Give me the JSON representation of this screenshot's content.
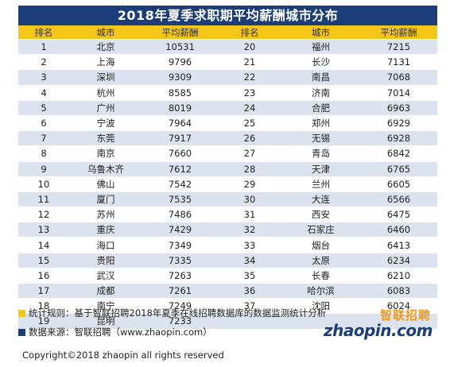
{
  "title": "2018年夏季求职期平均薪酬城市分布",
  "headers": [
    "排名",
    "城市",
    "平均薪酬",
    "排名",
    "城市",
    "平均薪酬"
  ],
  "left_rows": [
    [
      "1",
      "北京",
      "10531"
    ],
    [
      "2",
      "上海",
      "9796"
    ],
    [
      "3",
      "深圳",
      "9309"
    ],
    [
      "4",
      "杭州",
      "8585"
    ],
    [
      "5",
      "广州",
      "8019"
    ],
    [
      "6",
      "宁波",
      "7964"
    ],
    [
      "7",
      "东莞",
      "7917"
    ],
    [
      "8",
      "南京",
      "7660"
    ],
    [
      "9",
      "乌鲁木齐",
      "7612"
    ],
    [
      "10",
      "佛山",
      "7542"
    ],
    [
      "11",
      "厦门",
      "7535"
    ],
    [
      "12",
      "苏州",
      "7486"
    ],
    [
      "13",
      "重庆",
      "7429"
    ],
    [
      "14",
      "海口",
      "7349"
    ],
    [
      "15",
      "贵阳",
      "7335"
    ],
    [
      "16",
      "武汉",
      "7263"
    ],
    [
      "17",
      "成都",
      "7261"
    ],
    [
      "18",
      "南宁",
      "7249"
    ],
    [
      "19",
      "昆明",
      "7233"
    ]
  ],
  "right_rows": [
    [
      "20",
      "福州",
      "7215"
    ],
    [
      "21",
      "长沙",
      "7131"
    ],
    [
      "22",
      "南昌",
      "7068"
    ],
    [
      "23",
      "济南",
      "7014"
    ],
    [
      "24",
      "合肥",
      "6963"
    ],
    [
      "25",
      "郑州",
      "6929"
    ],
    [
      "26",
      "无锡",
      "6928"
    ],
    [
      "27",
      "青岛",
      "6842"
    ],
    [
      "28",
      "天津",
      "6765"
    ],
    [
      "29",
      "兰州",
      "6605"
    ],
    [
      "30",
      "大连",
      "6566"
    ],
    [
      "31",
      "西安",
      "6475"
    ],
    [
      "32",
      "石家庄",
      "6460"
    ],
    [
      "33",
      "烟台",
      "6413"
    ],
    [
      "34",
      "太原",
      "6234"
    ],
    [
      "35",
      "长春",
      "6210"
    ],
    [
      "36",
      "哈尔滨",
      "6083"
    ],
    [
      "37",
      "沈阳",
      "6024"
    ]
  ],
  "notes": {
    "method": "统计规则：基于智联招聘2018年夏季在线招聘数据库的数据监测统计分析",
    "source": "数据来源：智联招聘（www.zhaopin.com）"
  },
  "logo": {
    "cn": "智联招聘",
    "en": "zhaopin.com"
  },
  "copyright": "Copyright©2018 zhaopin all rights reserved",
  "colors": {
    "title_bg": "#1b3d7a",
    "header_bg": "#f4c617",
    "row_alt": "#dde3ee",
    "logo_orange": "#f29a1b"
  }
}
